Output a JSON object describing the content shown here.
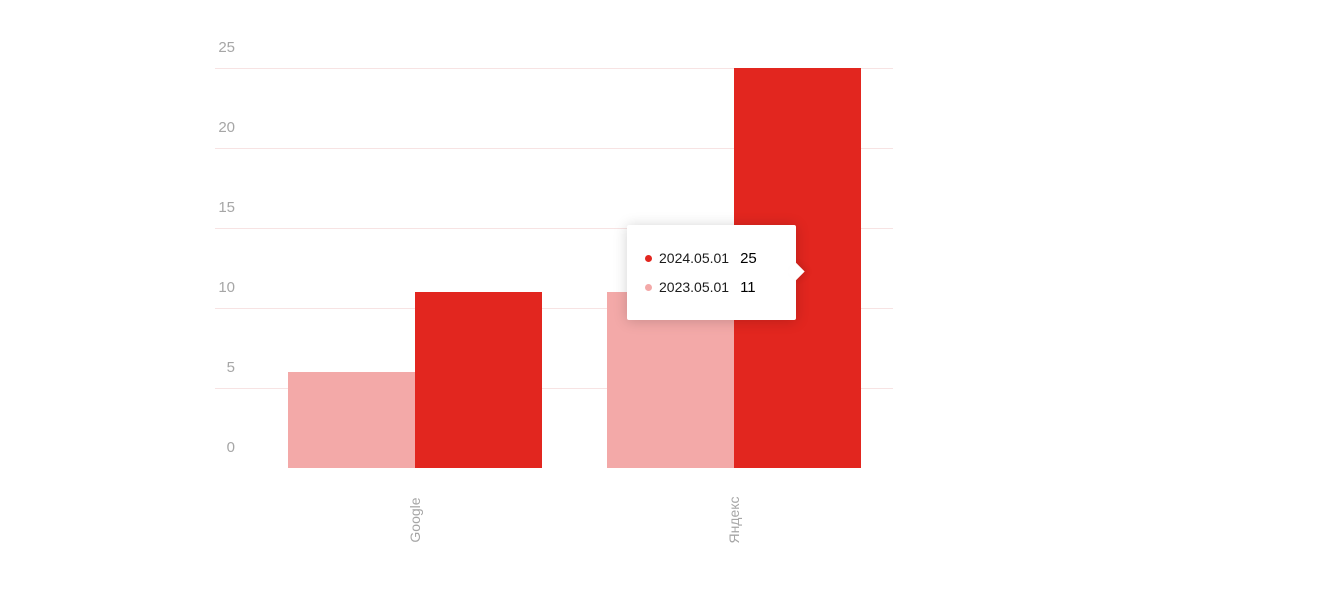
{
  "colors": {
    "series_2024": "#e2261f",
    "series_2023": "#f3a9a8",
    "gridline": "#f7e3e3",
    "axis_text": "#a6a6a6",
    "tooltip_text": "#1c1c1c",
    "background": "#ffffff"
  },
  "chart_data": {
    "type": "bar",
    "categories": [
      "Google",
      "Яндекс"
    ],
    "series": [
      {
        "name": "2023.05.01",
        "color": "#f3a9a8",
        "values": [
          6,
          11
        ]
      },
      {
        "name": "2024.05.01",
        "color": "#e2261f",
        "values": [
          11,
          25
        ]
      }
    ],
    "title": "",
    "xlabel": "",
    "ylabel": "",
    "ylim": [
      0,
      25
    ],
    "yticks": [
      0,
      5,
      10,
      15,
      20,
      25
    ],
    "grid": true,
    "legend_position": "none",
    "tooltip": {
      "target_category": "Яндекс",
      "rows": [
        {
          "label": "2024.05.01",
          "value": "25",
          "color": "#e2261f"
        },
        {
          "label": "2023.05.01",
          "value": "11",
          "color": "#f3a9a8"
        }
      ]
    }
  }
}
